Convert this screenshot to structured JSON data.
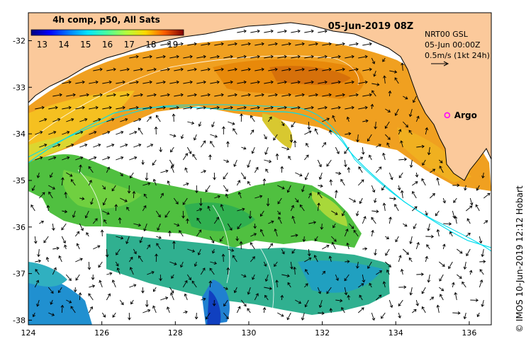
{
  "colorbar": {
    "title": "4h comp, p50, All Sats",
    "ticks": [
      "13",
      "14",
      "15",
      "16",
      "17",
      "18",
      "19"
    ],
    "vmin": 12.5,
    "vmax": 19.5
  },
  "header": {
    "date": "05-Jun-2019 08Z"
  },
  "info": {
    "line1": "NRT00 GSL",
    "line2": "05-Jun 00:00Z",
    "line3": "0.5m/s (1kt 24h)"
  },
  "argo": {
    "label": "Argo",
    "lon": 135.4,
    "lat": -33.6,
    "color": "#ff00ff"
  },
  "credit": "© IMOS 10-Jun-2019 12:12 Hobart",
  "axes": {
    "x_ticks": [
      "124",
      "126",
      "128",
      "130",
      "132",
      "134",
      "136"
    ],
    "y_ticks": [
      "-32",
      "-33",
      "-34",
      "-35",
      "-36",
      "-37",
      "-38"
    ],
    "lon_range": [
      124,
      136.6
    ],
    "lat_range": [
      -38.1,
      -31.4
    ]
  },
  "colors": {
    "land": "#fbc99b",
    "no_data": "#ffffff",
    "current_contour": "#00ddee"
  }
}
